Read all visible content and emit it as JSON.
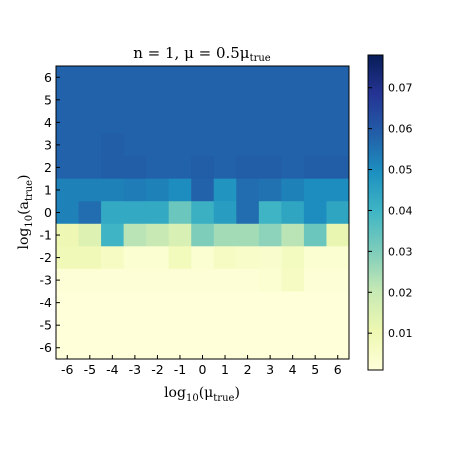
{
  "chart_data": {
    "type": "heatmap",
    "title": "n = 1,  μ = 0.5μ",
    "title_sub": "true",
    "xlabel": "log",
    "xlabel_base": "10",
    "xlabel_arg": "μ",
    "xlabel_sub": "true",
    "ylabel": "log",
    "ylabel_base": "10",
    "ylabel_arg": "a",
    "ylabel_sub": "true",
    "x": [
      "-6",
      "-5",
      "-4",
      "-3",
      "-2",
      "-1",
      "0",
      "1",
      "2",
      "3",
      "4",
      "5",
      "6"
    ],
    "y": [
      "6",
      "5",
      "4",
      "3",
      "2",
      "1",
      "0",
      "-1",
      "-2",
      "-3",
      "-4",
      "-5",
      "-6"
    ],
    "values": [
      [
        0.058,
        0.058,
        0.058,
        0.058,
        0.058,
        0.058,
        0.058,
        0.058,
        0.058,
        0.058,
        0.058,
        0.058,
        0.058
      ],
      [
        0.058,
        0.058,
        0.058,
        0.058,
        0.058,
        0.058,
        0.058,
        0.058,
        0.058,
        0.058,
        0.058,
        0.058,
        0.058
      ],
      [
        0.058,
        0.058,
        0.058,
        0.058,
        0.058,
        0.058,
        0.058,
        0.058,
        0.058,
        0.058,
        0.058,
        0.058,
        0.058
      ],
      [
        0.058,
        0.058,
        0.059,
        0.058,
        0.058,
        0.058,
        0.058,
        0.058,
        0.058,
        0.058,
        0.058,
        0.058,
        0.058
      ],
      [
        0.058,
        0.058,
        0.059,
        0.059,
        0.058,
        0.058,
        0.059,
        0.058,
        0.059,
        0.059,
        0.058,
        0.059,
        0.059
      ],
      [
        0.052,
        0.052,
        0.052,
        0.053,
        0.052,
        0.05,
        0.058,
        0.048,
        0.056,
        0.055,
        0.052,
        0.05,
        0.05
      ],
      [
        0.052,
        0.056,
        0.043,
        0.043,
        0.043,
        0.033,
        0.041,
        0.046,
        0.056,
        0.04,
        0.044,
        0.05,
        0.044
      ],
      [
        0.01,
        0.015,
        0.04,
        0.022,
        0.02,
        0.016,
        0.03,
        0.025,
        0.025,
        0.028,
        0.022,
        0.033,
        0.012
      ],
      [
        0.009,
        0.009,
        0.006,
        0.003,
        0.003,
        0.008,
        0.003,
        0.006,
        0.005,
        0.004,
        0.007,
        0.003,
        0.003
      ],
      [
        0.002,
        0.002,
        0.002,
        0.002,
        0.002,
        0.002,
        0.002,
        0.002,
        0.002,
        0.003,
        0.006,
        0.002,
        0.002
      ],
      [
        0.001,
        0.001,
        0.001,
        0.001,
        0.001,
        0.001,
        0.001,
        0.001,
        0.001,
        0.001,
        0.001,
        0.001,
        0.001
      ],
      [
        0.001,
        0.001,
        0.001,
        0.001,
        0.001,
        0.001,
        0.001,
        0.001,
        0.001,
        0.001,
        0.001,
        0.001,
        0.001
      ],
      [
        0.001,
        0.001,
        0.001,
        0.001,
        0.001,
        0.001,
        0.001,
        0.001,
        0.001,
        0.001,
        0.001,
        0.001,
        0.001
      ]
    ],
    "vmin": 0.001,
    "vmax": 0.078,
    "colormap": "YlGnBu",
    "colorbar_ticks": [
      "0.01",
      "0.02",
      "0.03",
      "0.04",
      "0.05",
      "0.06",
      "0.07"
    ],
    "colorbar_tick_values": [
      0.01,
      0.02,
      0.03,
      0.04,
      0.05,
      0.06,
      0.07
    ],
    "colormap_stops": [
      "#ffffd9",
      "#edf8b1",
      "#c7e9b4",
      "#7fcdbb",
      "#41b6c4",
      "#1d91c0",
      "#225ea8",
      "#253494",
      "#081d58"
    ],
    "grid": false
  }
}
